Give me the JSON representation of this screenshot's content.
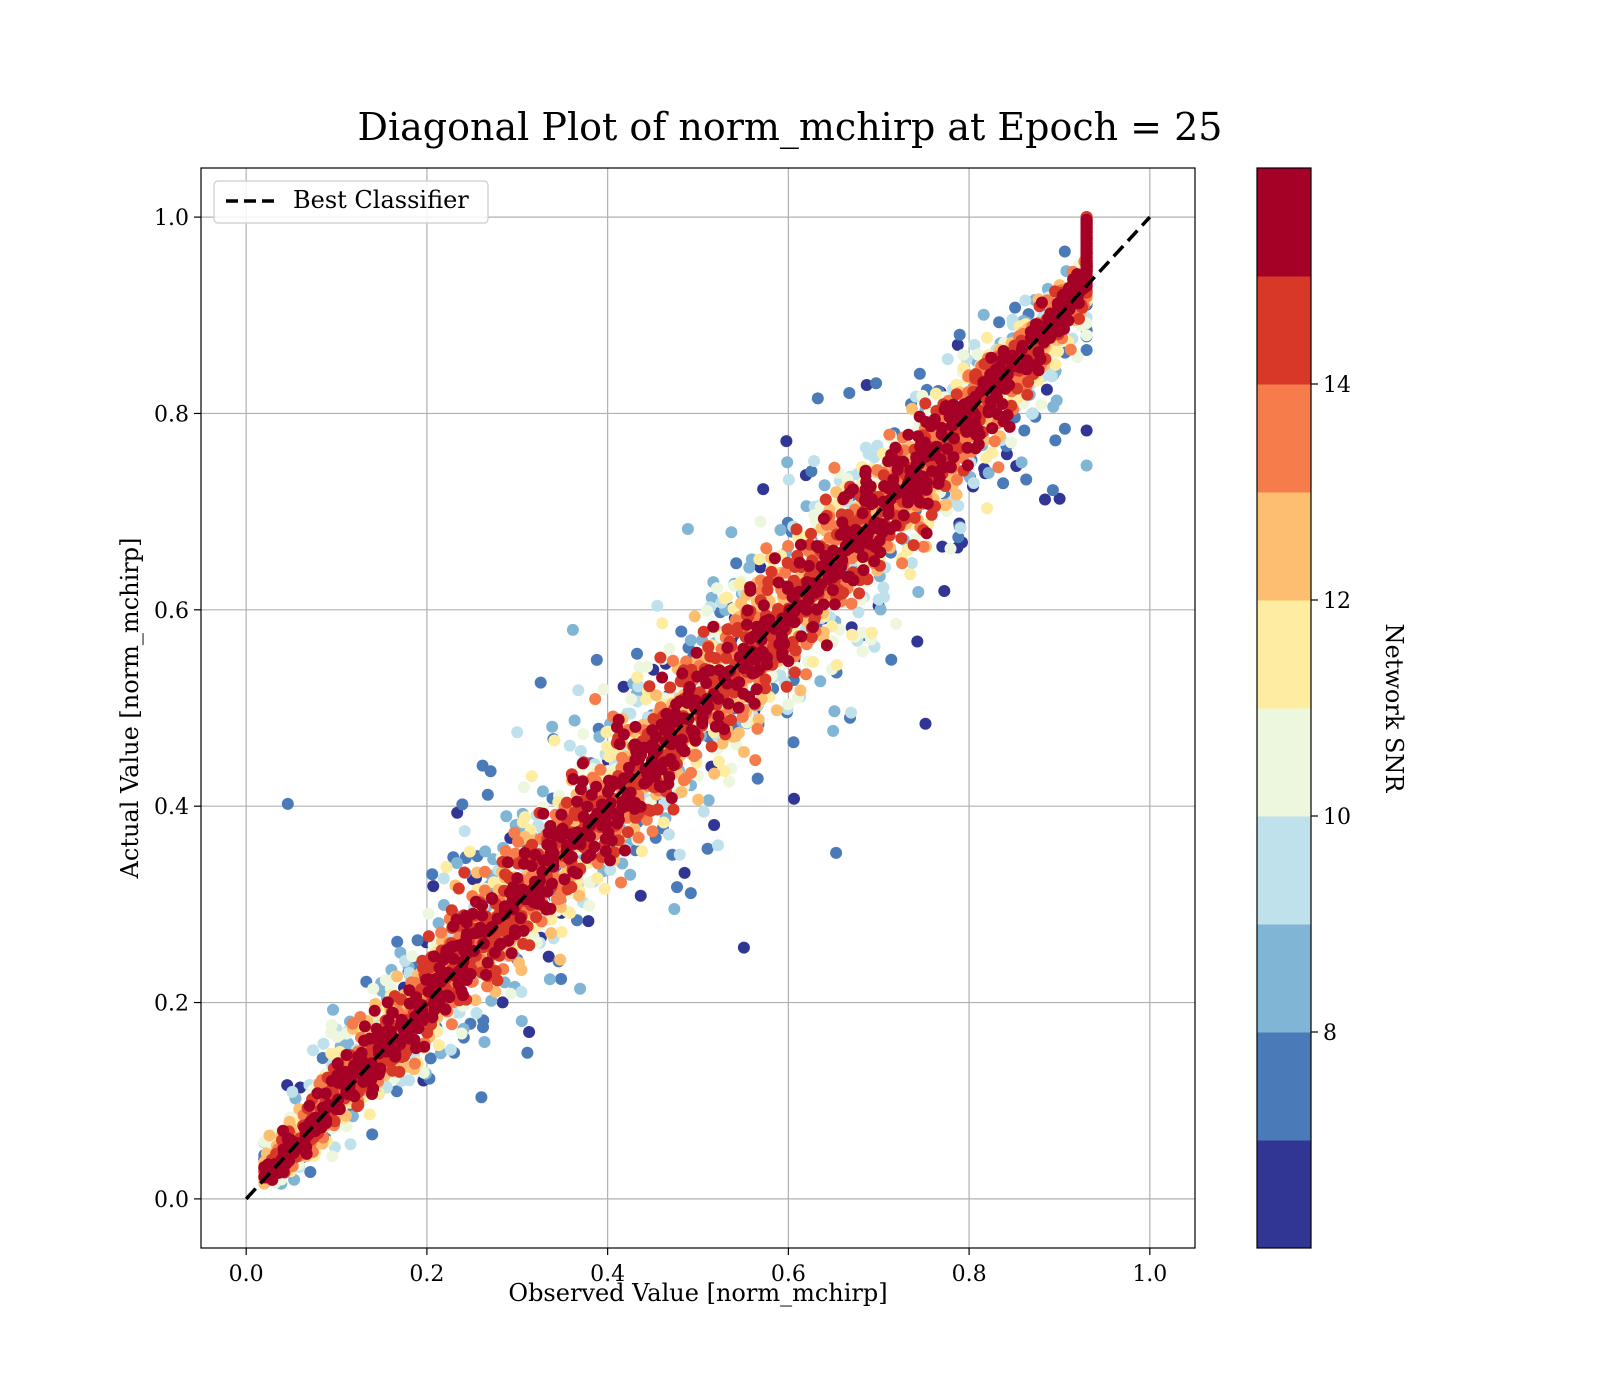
{
  "chart_data": {
    "type": "scatter",
    "title": "Diagonal Plot of norm_mchirp at Epoch = 25",
    "xlabel": "Observed Value [norm_mchirp]",
    "ylabel": "Actual Value [norm_mchirp]",
    "xlim": [
      -0.05,
      1.05
    ],
    "ylim": [
      -0.05,
      1.05
    ],
    "x_ticks": [
      "0.0",
      "0.2",
      "0.4",
      "0.6",
      "0.8",
      "1.0"
    ],
    "y_ticks": [
      "0.0",
      "0.2",
      "0.4",
      "0.6",
      "0.8",
      "1.0"
    ],
    "grid": true,
    "legend": {
      "placement": "upper-left",
      "entries": [
        {
          "label": "Best Classifier",
          "style": "dashed",
          "color": "#000000"
        }
      ]
    },
    "reference_line": {
      "name": "Best Classifier",
      "x": [
        0.0,
        1.0
      ],
      "y": [
        0.0,
        1.0
      ]
    },
    "colorbar": {
      "label": "Network SNR",
      "min": 6.0,
      "max": 16.0,
      "ticks": [
        "8",
        "10",
        "12",
        "14"
      ],
      "colors": [
        "#313695",
        "#4a7ab7",
        "#80b5d6",
        "#bfe1ec",
        "#edf7de",
        "#feeca0",
        "#fdbf6f",
        "#f67c4b",
        "#d73828",
        "#a50026"
      ]
    },
    "scatter_description": {
      "x_range": [
        0.02,
        0.93
      ],
      "y_range": [
        0.0,
        1.0
      ],
      "trend": "points concentrated along y = x, high SNR (dark red) near diagonal, low SNR (blue) scattered farther away"
    }
  }
}
